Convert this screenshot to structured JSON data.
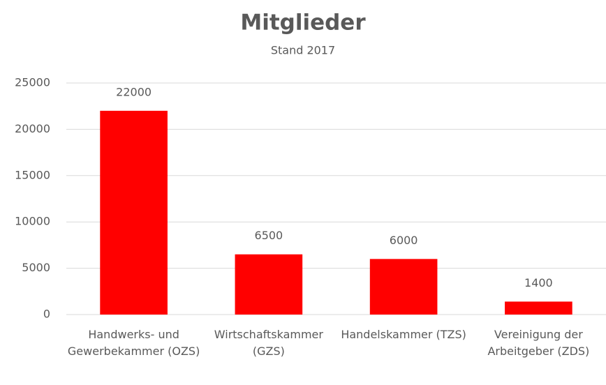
{
  "chart_data": {
    "type": "bar",
    "title": "Mitglieder",
    "subtitle": "Stand 2017",
    "categories": [
      "Handwerks- und Gewerbekammer (OZS)",
      "Wirtschaftskammer (GZS)",
      "Handelskammer (TZS)",
      "Vereinigung der Arbeitgeber (ZDS)"
    ],
    "values": [
      22000,
      6500,
      6000,
      1400
    ],
    "color": "#ff0000",
    "ylim": [
      0,
      25000
    ],
    "yticks": [
      0,
      5000,
      10000,
      15000,
      20000,
      25000
    ],
    "grid": true
  }
}
